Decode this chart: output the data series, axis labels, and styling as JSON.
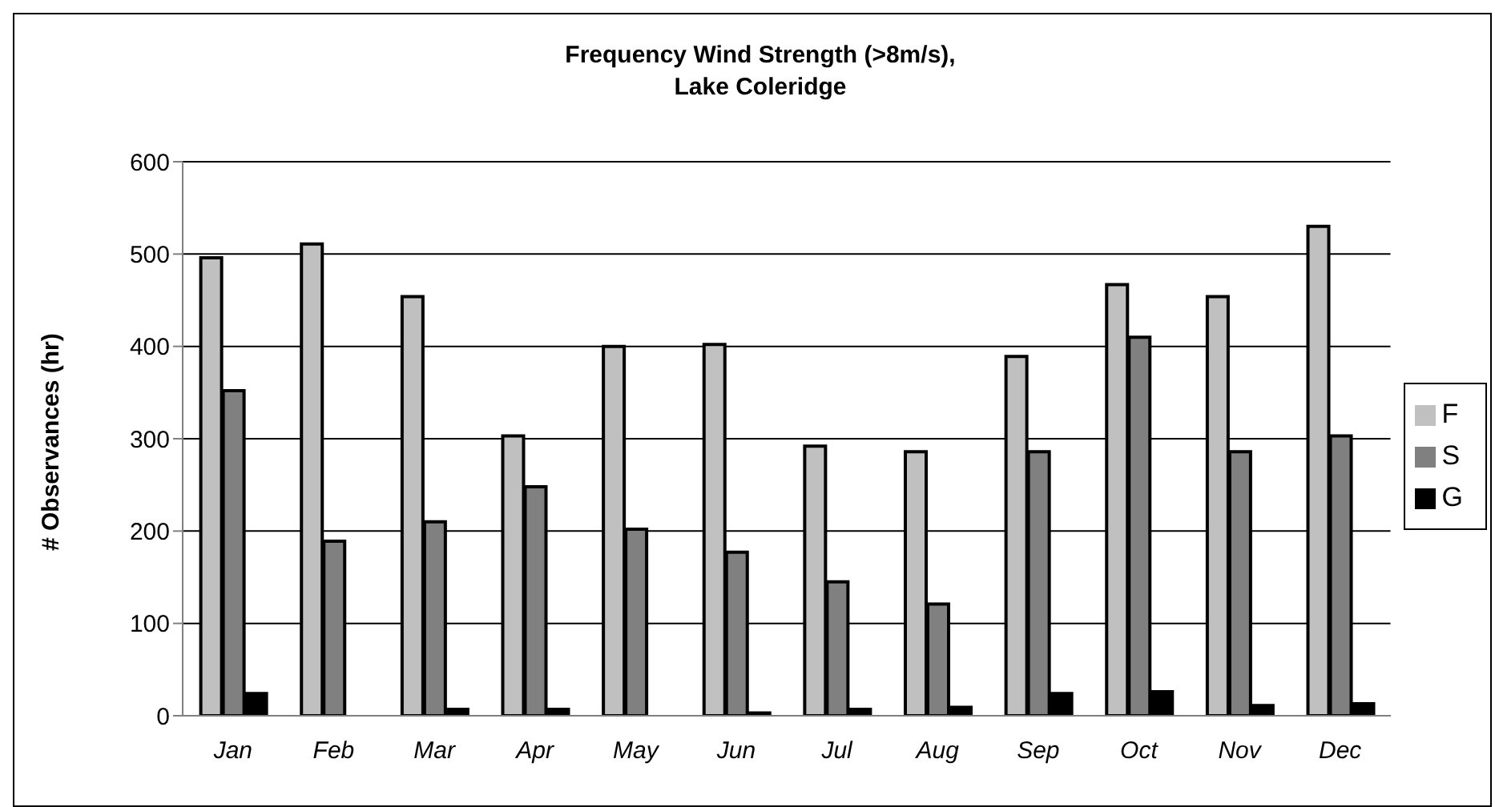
{
  "chart_data": {
    "type": "bar",
    "title": "Frequency Wind Strength (>8m/s),\nLake Coleridge",
    "ylabel": "# Observances (hr)",
    "categories": [
      "Jan",
      "Feb",
      "Mar",
      "Apr",
      "May",
      "Jun",
      "Jul",
      "Aug",
      "Sep",
      "Oct",
      "Nov",
      "Dec"
    ],
    "series": [
      {
        "name": "F",
        "color": "#c0c0c0",
        "values": [
          496,
          511,
          454,
          303,
          400,
          402,
          292,
          286,
          389,
          467,
          454,
          530
        ]
      },
      {
        "name": "S",
        "color": "#808080",
        "values": [
          352,
          189,
          210,
          248,
          202,
          177,
          145,
          121,
          286,
          410,
          286,
          303
        ]
      },
      {
        "name": "G",
        "color": "#000000",
        "values": [
          24,
          0,
          7,
          7,
          0,
          3,
          7,
          9,
          24,
          26,
          11,
          13
        ]
      }
    ],
    "ylim": [
      0,
      600
    ],
    "yticks": [
      0,
      100,
      200,
      300,
      400,
      500,
      600
    ],
    "grid": "y",
    "legend": "right"
  }
}
